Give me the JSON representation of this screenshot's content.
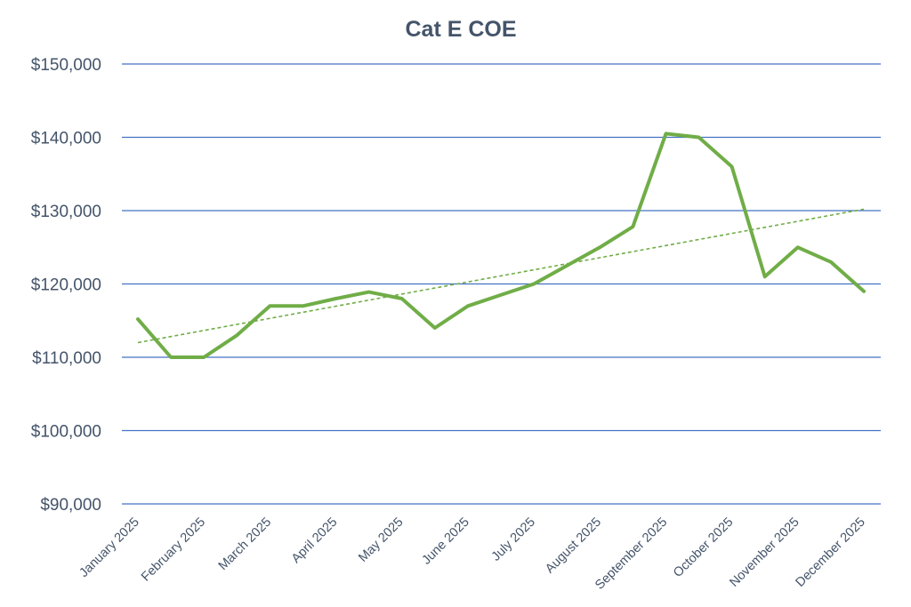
{
  "chart_data": {
    "type": "line",
    "title": "Cat E COE",
    "xlabel": "",
    "ylabel": "",
    "categories": [
      "January 2025",
      "February 2025",
      "March 2025",
      "April 2025",
      "May 2025",
      "June 2025",
      "July 2025",
      "August 2025",
      "September 2025",
      "October 2025",
      "November 2025",
      "December 2025"
    ],
    "x": [
      1,
      1.5,
      2,
      2.5,
      3,
      3.5,
      4,
      4.5,
      5,
      5.5,
      6,
      6.5,
      7,
      7.5,
      8,
      8.5,
      9,
      9.5,
      10,
      10.5,
      11,
      11.5,
      12
    ],
    "series": [
      {
        "values": [
          115200,
          110000,
          110000,
          113000,
          117000,
          117000,
          118000,
          118900,
          118000,
          114000,
          117000,
          118500,
          120000,
          122500,
          125000,
          127800,
          140500,
          140000,
          136000,
          121000,
          125000,
          123000,
          119000
        ]
      }
    ],
    "trendline": {
      "style": "dotted",
      "start": 112000,
      "end": 130200
    },
    "yticks": [
      "$90,000",
      "$100,000",
      "$110,000",
      "$120,000",
      "$130,000",
      "$140,000",
      "$150,000"
    ],
    "ytick_values": [
      90000,
      100000,
      110000,
      120000,
      130000,
      140000,
      150000
    ],
    "ylim": [
      90000,
      150000
    ],
    "grid": true,
    "legend": "none",
    "colors": {
      "line": "#70ad47",
      "trend": "#70ad47",
      "grid": "#4472c4",
      "title": "#44546a",
      "tick_text": "#44546a"
    }
  }
}
